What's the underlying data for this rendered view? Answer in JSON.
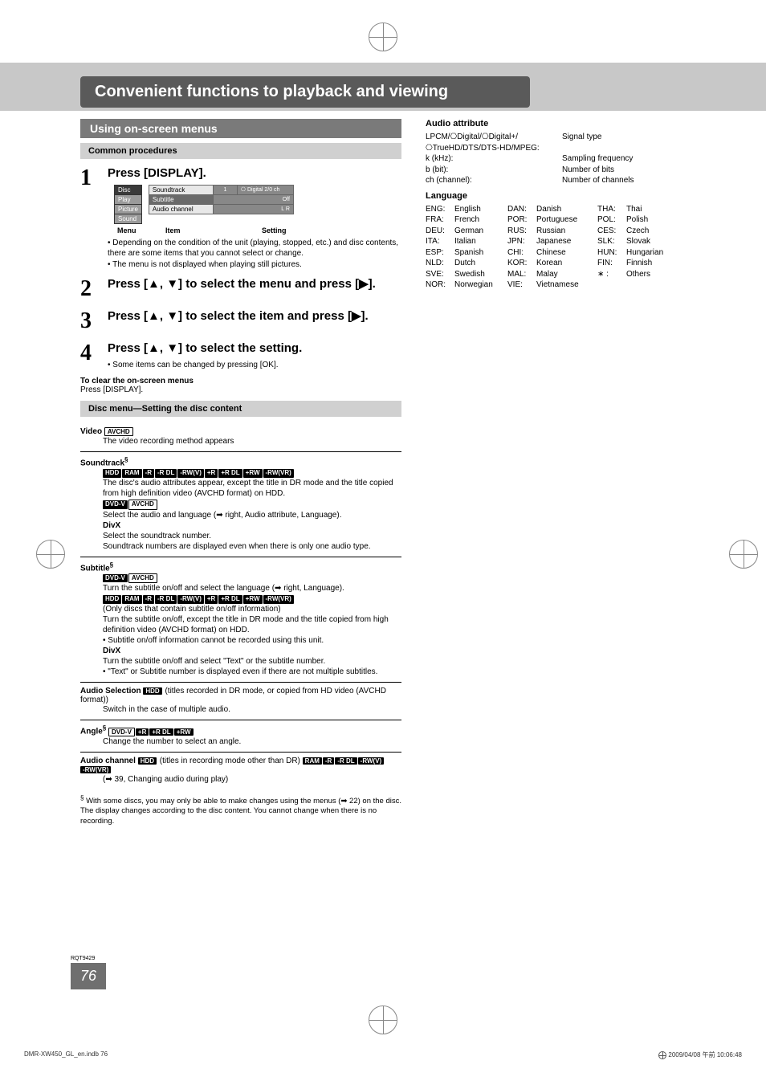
{
  "page": {
    "title": "Convenient functions to playback and viewing",
    "section": "Using on-screen menus",
    "common": "Common procedures",
    "page_num": "76",
    "rqt": "RQT9429"
  },
  "steps": {
    "s1": {
      "num": "1",
      "title": "Press [DISPLAY]."
    },
    "s2": {
      "num": "2",
      "title": "Press [▲, ▼] to select the menu and press [▶]."
    },
    "s3": {
      "num": "3",
      "title": "Press [▲, ▼] to select the item and press [▶]."
    },
    "s4": {
      "num": "4",
      "title": "Press [▲, ▼] to select the setting.",
      "note": "Some items can be changed by pressing [OK]."
    }
  },
  "menu_diag": {
    "left": {
      "r1": "Disc",
      "r2": "Play",
      "r3": "Picture",
      "r4": "Sound"
    },
    "mid": {
      "r1": "Soundtrack",
      "r2": "Subtitle",
      "r3": "Audio channel"
    },
    "right": {
      "r1a": "1",
      "r1b": "⎔ Digital  2/0 ch",
      "r2": "Off",
      "r3": "L R"
    },
    "labels": {
      "a": "Menu",
      "b": "Item",
      "c": "Setting"
    },
    "notes": {
      "a": "Depending on the condition of the unit (playing, stopped, etc.) and disc contents, there are some items that you cannot select or change.",
      "b": "The menu is not displayed when playing still pictures."
    }
  },
  "clear": {
    "head": "To clear the on-screen menus",
    "body": "Press [DISPLAY]."
  },
  "disc_menu": {
    "bar": "Disc menu—Setting the disc content"
  },
  "items": {
    "video": {
      "head": "Video",
      "badge": "AVCHD",
      "body": "The video recording method appears"
    },
    "sound": {
      "head": "Soundtrack",
      "line1": "The disc's audio attributes appear, except the title in DR mode and the title copied from high definition video (AVCHD format) on HDD.",
      "line2": "Select the audio and language (➡ right, Audio attribute, Language).",
      "divx_h": "DivX",
      "divx1": "Select the soundtrack number.",
      "divx2": "Soundtrack numbers are displayed even when there is only one audio type."
    },
    "subtitle": {
      "head": "Subtitle",
      "l1": "Turn the subtitle on/off and select the language (➡ right, Language).",
      "l2": "(Only discs that contain subtitle on/off information)",
      "l3": "Turn the subtitle on/off, except the title in DR mode and the title copied from high definition video (AVCHD format) on HDD.",
      "l4": "Subtitle on/off information cannot be recorded using this unit.",
      "divx_h": "DivX",
      "divx1": "Turn the subtitle on/off and select \"Text\" or the subtitle number.",
      "divx2": "\"Text\" or Subtitle number is displayed even if there are not multiple subtitles."
    },
    "audio_sel": {
      "head": "Audio Selection",
      "tail": " (titles recorded in DR mode, or copied from HD video (AVCHD format))",
      "body": "Switch in the case of multiple audio."
    },
    "angle": {
      "head": "Angle",
      "body": "Change the number to select an angle."
    },
    "audio_ch": {
      "head": "Audio channel",
      "tail": " (titles in recording mode other than DR)",
      "body": "(➡ 39, Changing audio during play)"
    }
  },
  "footnotes": {
    "a": "With some discs, you may only be able to make changes using the menus (➡ 22) on the disc.",
    "b": "The display changes according to the disc content. You cannot change when there is no recording."
  },
  "attr": {
    "head": "Audio attribute",
    "rows": {
      "r1a": "LPCM/⎔Digital/⎔Digital+/\n⎔TrueHD/DTS/DTS-HD/MPEG:",
      "r1b": "Signal type",
      "r2a": "k (kHz):",
      "r2b": "Sampling frequency",
      "r3a": "b (bit):",
      "r3b": "Number of bits",
      "r4a": "ch (channel):",
      "r4b": "Number of channels"
    }
  },
  "lang": {
    "head": "Language",
    "rows": [
      [
        "ENG:",
        "English",
        "DAN:",
        "Danish",
        "THA:",
        "Thai"
      ],
      [
        "FRA:",
        "French",
        "POR:",
        "Portuguese",
        "POL:",
        "Polish"
      ],
      [
        "DEU:",
        "German",
        "RUS:",
        "Russian",
        "CES:",
        "Czech"
      ],
      [
        "ITA:",
        "Italian",
        "JPN:",
        "Japanese",
        "SLK:",
        "Slovak"
      ],
      [
        "ESP:",
        "Spanish",
        "CHI:",
        "Chinese",
        "HUN:",
        "Hungarian"
      ],
      [
        "NLD:",
        "Dutch",
        "KOR:",
        "Korean",
        "FIN:",
        "Finnish"
      ],
      [
        "SVE:",
        "Swedish",
        "MAL:",
        "Malay",
        "∗ :",
        "Others"
      ],
      [
        "NOR:",
        "Norwegian",
        "VIE:",
        "Vietnamese",
        "",
        ""
      ]
    ]
  },
  "badges": {
    "set1": [
      "HDD",
      "RAM",
      "-R",
      "-R DL",
      "-RW(V)",
      "+R",
      "+R DL",
      "+RW",
      "-RW(VR)"
    ],
    "set2": [
      "DVD-V",
      "AVCHD"
    ],
    "set3": [
      "DVD-V",
      "+R",
      "+R DL",
      "+RW"
    ],
    "set4": [
      "RAM",
      "-R",
      "-R DL",
      "-RW(V)",
      "-RW(VR)"
    ]
  },
  "footer": {
    "left": "DMR-XW450_GL_en.indb   76",
    "right": "2009/04/08   午前 10:06:48"
  }
}
